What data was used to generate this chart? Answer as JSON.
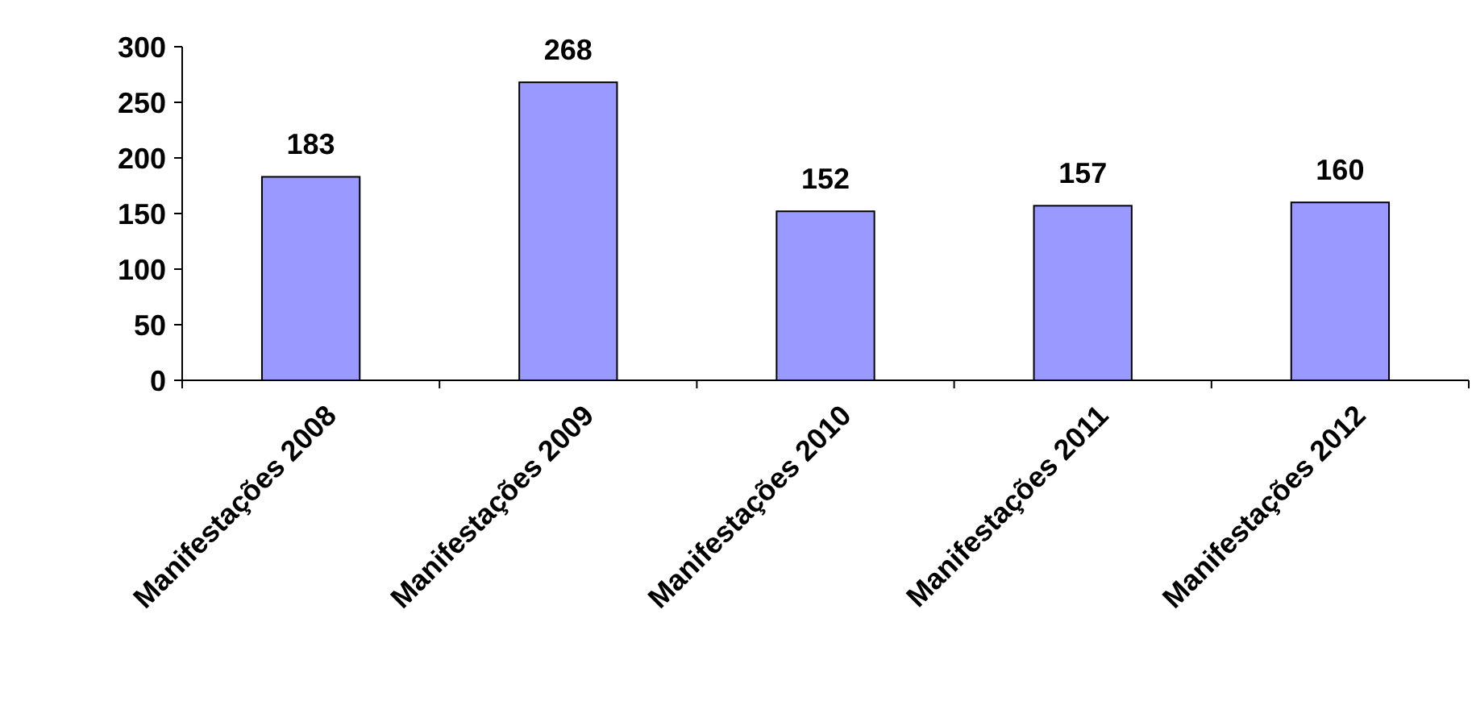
{
  "chart_data": {
    "type": "bar",
    "categories": [
      "Manifestações 2008",
      "Manifestações 2009",
      "Manifestações 2010",
      "Manifestações 2011",
      "Manifestações 2012"
    ],
    "values": [
      183,
      268,
      152,
      157,
      160
    ],
    "color": "#9999ff",
    "ylim": [
      0,
      300
    ],
    "yticks": [
      0,
      50,
      100,
      150,
      200,
      250,
      300
    ],
    "data_labels": true,
    "grid": false
  }
}
